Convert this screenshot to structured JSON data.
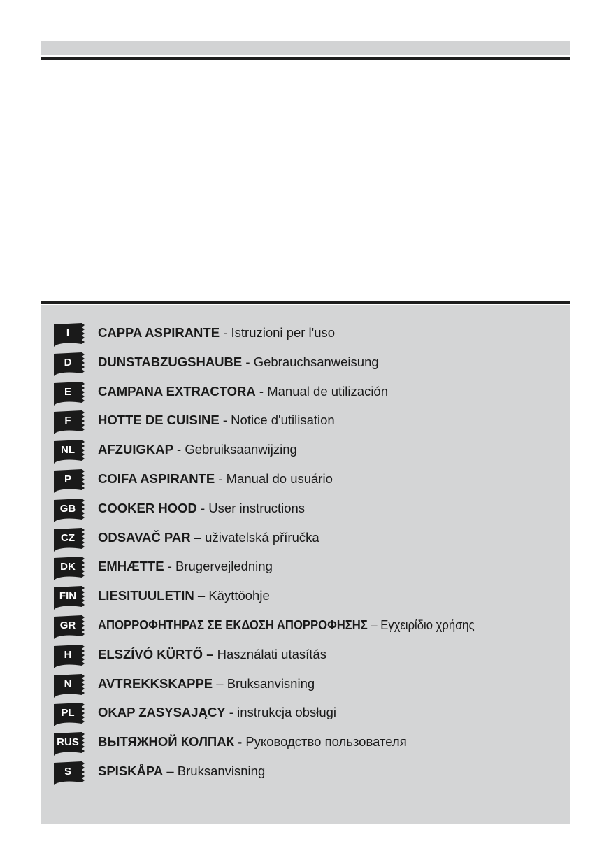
{
  "languages": [
    {
      "code": "I",
      "title": "CAPPA ASPIRANTE",
      "sep": " - ",
      "subtitle": "Istruzioni per l'uso"
    },
    {
      "code": "D",
      "title": "DUNSTABZUGSHAUBE",
      "sep": " - ",
      "subtitle": "Gebrauchsanweisung"
    },
    {
      "code": "E",
      "title": "CAMPANA EXTRACTORA",
      "sep": " - ",
      "subtitle": "Manual de utilización"
    },
    {
      "code": "F",
      "title": "HOTTE DE CUISINE",
      "sep": " - ",
      "subtitle": "Notice d'utilisation"
    },
    {
      "code": "NL",
      "title": "AFZUIGKAP",
      "sep": " - ",
      "subtitle": "Gebruiksaanwijzing"
    },
    {
      "code": "P",
      "title": "COIFA ASPIRANTE",
      "sep": " - ",
      "subtitle": "Manual do usuário"
    },
    {
      "code": "GB",
      "title": "COOKER HOOD",
      "sep": " - ",
      "subtitle": "User instructions"
    },
    {
      "code": "CZ",
      "title": "ODSAVAČ PAR",
      "sep": " – ",
      "subtitle": "uživatelská příručka"
    },
    {
      "code": "DK",
      "title": "EMHÆTTE",
      "sep": " - ",
      "subtitle": "Brugervejledning"
    },
    {
      "code": "FIN",
      "title": "LIESITUULETIN",
      "sep": " – ",
      "subtitle": "Käyttöohje"
    },
    {
      "code": "GR",
      "title": "ΑΠΟΡΡΟΦΗΤΗΡΑΣ ΣΕ ΕΚΔΟΣΗ ΑΠΟΡΡΟΦΗΣΗΣ",
      "sep": " – ",
      "subtitle": "Εγχειρίδιο χρήσης"
    },
    {
      "code": "H",
      "title": "ELSZÍVÓ KÜRTŐ –",
      "sep": " ",
      "subtitle": "Használati utasítás"
    },
    {
      "code": "N",
      "title": "AVTREKKSKAPPE",
      "sep": " – ",
      "subtitle": "Bruksanvisning"
    },
    {
      "code": "PL",
      "title": "OKAP ZASYSAJĄCY",
      "sep": " - ",
      "subtitle": "instrukcja obsługi"
    },
    {
      "code": "RUS",
      "title": "ВЫТЯЖНОЙ КОЛПАК -",
      "sep": " ",
      "subtitle": "Руководство пользователя"
    },
    {
      "code": "S",
      "title": "SPISKÅPA",
      "sep": " – ",
      "subtitle": "Bruksanvisning"
    }
  ],
  "colors": {
    "band": "#d2d3d4",
    "box": "#d4d5d6",
    "rule": "#1e1e1e",
    "badge": "#1a1a1a"
  }
}
